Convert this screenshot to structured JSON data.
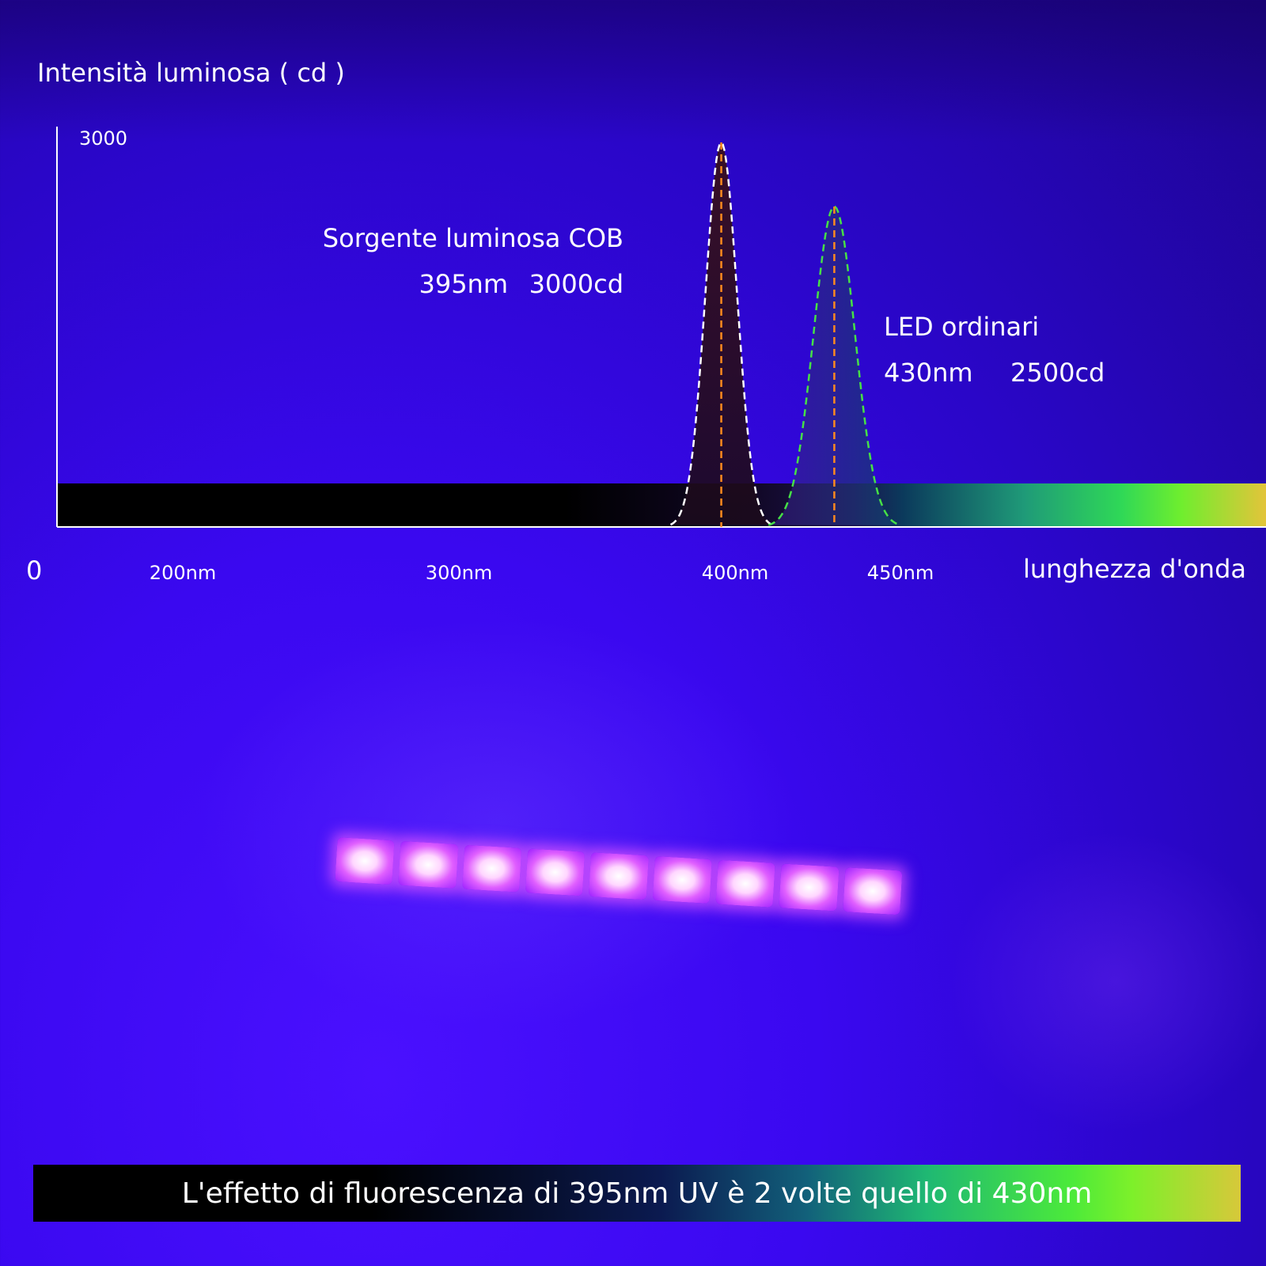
{
  "chart_data": {
    "type": "area",
    "ylabel": "Intensità luminosa ( cd )",
    "xlabel": "lunghezza d'onda",
    "origin_label": "0",
    "y_tick": "3000",
    "x_ticks": [
      {
        "value": 200,
        "label": "200nm"
      },
      {
        "value": 300,
        "label": "300nm"
      },
      {
        "value": 400,
        "label": "400nm"
      },
      {
        "value": 450,
        "label": "450nm"
      }
    ],
    "ylim": [
      0,
      3000
    ],
    "series": [
      {
        "peak_nm": 395,
        "peak_cd": 3000,
        "color": "#ffffff"
      },
      {
        "peak_nm": 430,
        "peak_cd": 2500,
        "color": "#46e046"
      }
    ],
    "annotations": [
      {
        "line1": "Sorgente luminosa COB",
        "line2a": "395nm",
        "line2b": "3000cd"
      },
      {
        "line1": "LED ordinari",
        "line2a": "430nm",
        "line2b": "2500cd"
      }
    ],
    "peak_marker_color": "#ff8a1e"
  },
  "caption": "L'effetto di fluorescenza di 395nm UV è 2 volte quello di 430nm"
}
